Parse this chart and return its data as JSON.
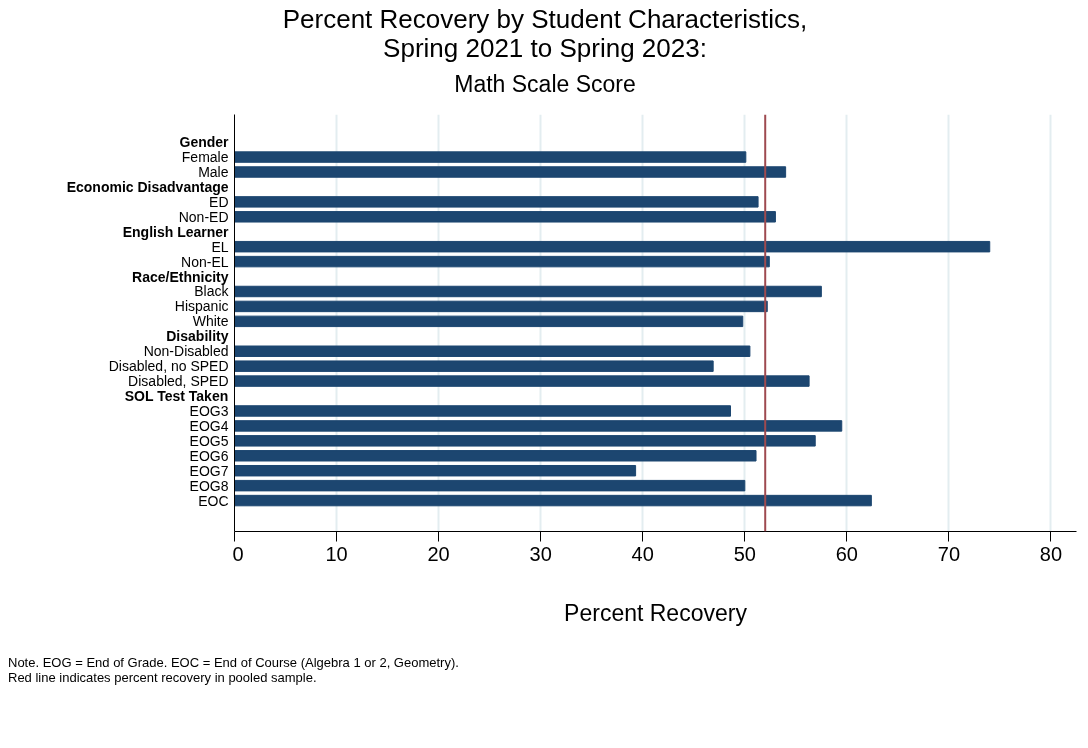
{
  "chart_data": {
    "type": "bar",
    "orientation": "horizontal",
    "title": "Percent Recovery by Student Characteristics,\nSpring 2021 to Spring 2023:",
    "subtitle": "Math Scale Score",
    "xlabel": "Percent Recovery",
    "categories": [
      "Gender",
      "Female",
      "Male",
      "Economic Disadvantage",
      "ED",
      "Non-ED",
      "English Learner",
      "EL",
      "Non-EL",
      "Race/Ethnicity",
      "Black",
      "Hispanic",
      "White",
      "Disability",
      "Non-Disabled",
      "Disabled, no SPED",
      "Disabled, SPED",
      "SOL Test Taken",
      "EOG3",
      "EOG4",
      "EOG5",
      "EOG6",
      "EOG7",
      "EOG8",
      "EOC"
    ],
    "values": [
      null,
      50.1,
      54.0,
      null,
      51.3,
      53.0,
      null,
      74.0,
      52.4,
      null,
      57.5,
      52.2,
      49.8,
      null,
      50.5,
      46.9,
      56.3,
      null,
      48.6,
      59.5,
      56.9,
      51.1,
      39.3,
      50.0,
      62.4
    ],
    "color": "#1c4670",
    "xlim": [
      0,
      82.5
    ],
    "xticks": [
      0,
      10,
      20,
      30,
      40,
      50,
      60,
      70,
      80
    ],
    "grid": "x",
    "ref_lines": [
      {
        "axis": "x",
        "value": 52.0,
        "color": "#9e4a50"
      }
    ],
    "annotations": [
      "Note. EOG = End of Grade. EOC = End of Course (Algebra 1 or 2, Geometry).",
      "Red line indicates percent recovery in pooled sample."
    ]
  }
}
